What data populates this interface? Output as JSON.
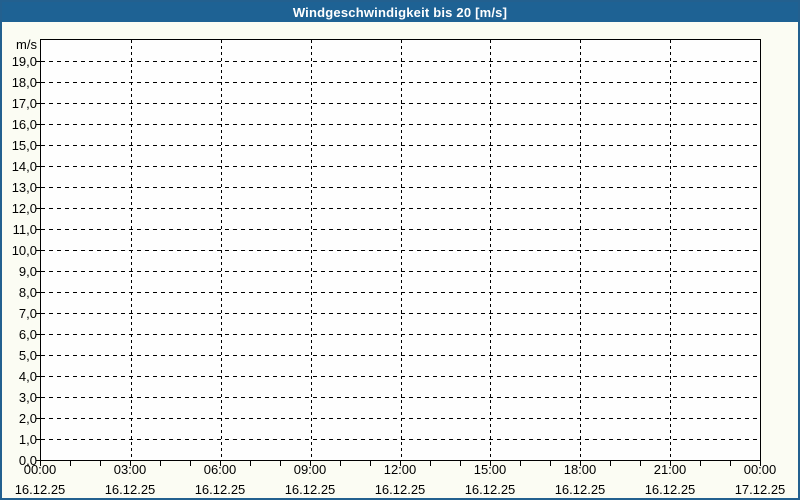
{
  "window": {
    "title": "Windgeschwindigkeit bis 20 [m/s]"
  },
  "chart_data": {
    "type": "line",
    "title": "Windgeschwindigkeit bis 20 [m/s]",
    "xlabel": "",
    "ylabel": "m/s",
    "ylim": [
      0,
      20
    ],
    "x_range_hours": 24,
    "x_major_step_hours": 3,
    "x_minor_step_hours": 1,
    "grid": true,
    "legend": false,
    "decimal_separator": ",",
    "y_ticks": [
      {
        "value": 19,
        "label": "19,0"
      },
      {
        "value": 18,
        "label": "18,0"
      },
      {
        "value": 17,
        "label": "17,0"
      },
      {
        "value": 16,
        "label": "16,0"
      },
      {
        "value": 15,
        "label": "15,0"
      },
      {
        "value": 14,
        "label": "14,0"
      },
      {
        "value": 13,
        "label": "13,0"
      },
      {
        "value": 12,
        "label": "12,0"
      },
      {
        "value": 11,
        "label": "11,0"
      },
      {
        "value": 10,
        "label": "10,0"
      },
      {
        "value": 9,
        "label": "9,0"
      },
      {
        "value": 8,
        "label": "8,0"
      },
      {
        "value": 7,
        "label": "7,0"
      },
      {
        "value": 6,
        "label": "6,0"
      },
      {
        "value": 5,
        "label": "5,0"
      },
      {
        "value": 4,
        "label": "4,0"
      },
      {
        "value": 3,
        "label": "3,0"
      },
      {
        "value": 2,
        "label": "2,0"
      },
      {
        "value": 1,
        "label": "1,0"
      },
      {
        "value": 0,
        "label": "0,0"
      }
    ],
    "x_ticks": [
      {
        "time": "00:00",
        "date": "16.12.25"
      },
      {
        "time": "03:00",
        "date": "16.12.25"
      },
      {
        "time": "06:00",
        "date": "16.12.25"
      },
      {
        "time": "09:00",
        "date": "16.12.25"
      },
      {
        "time": "12:00",
        "date": "16.12.25"
      },
      {
        "time": "15:00",
        "date": "16.12.25"
      },
      {
        "time": "18:00",
        "date": "16.12.25"
      },
      {
        "time": "21:00",
        "date": "16.12.25"
      },
      {
        "time": "00:00",
        "date": "17.12.25"
      }
    ],
    "series": []
  },
  "colors": {
    "titlebar_bg": "#1e6294",
    "titlebar_text": "#ffffff",
    "outer_border": "#23608f",
    "page_bg": "#fbfcf3",
    "plot_bg": "#fefefe",
    "grid": "#000000",
    "axis_text": "#000000"
  }
}
